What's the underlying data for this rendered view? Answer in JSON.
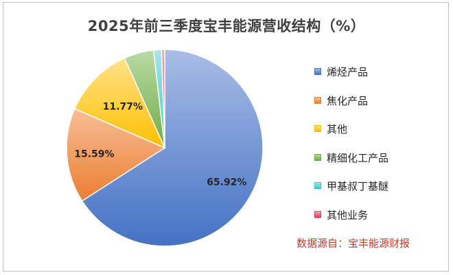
{
  "chart_data": {
    "type": "pie",
    "title": "2025年前三季度宝丰能源营收结构（%）",
    "slices": [
      {
        "name": "烯烃产品",
        "value": 65.92,
        "label": "65.92%",
        "color": "#4472c4",
        "light": "#a9bde6"
      },
      {
        "name": "焦化产品",
        "value": 15.59,
        "label": "15.59%",
        "color": "#ed7d31",
        "light": "#f6bf97"
      },
      {
        "name": "其他",
        "value": 11.77,
        "label": "11.77%",
        "color": "#ffc000",
        "light": "#ffe28a"
      },
      {
        "name": "精细化工产品",
        "value": 4.9,
        "label": "",
        "color": "#70ad47",
        "light": "#b9daa6"
      },
      {
        "name": "甲基叔丁基醚",
        "value": 1.3,
        "label": "",
        "color": "#3fc6c6",
        "light": "#a6e6e6"
      },
      {
        "name": "其他业务",
        "value": 0.52,
        "label": "",
        "color": "#e0405e",
        "light": "#f2a6b4"
      }
    ],
    "legend_position": "right"
  },
  "source_note": "数据源自：宝丰能源财报"
}
